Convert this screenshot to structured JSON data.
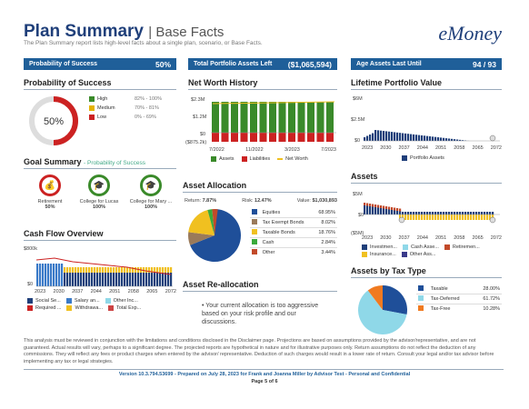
{
  "header": {
    "title": "Plan Summary",
    "subtitle": "| Base Facts",
    "description": "The Plan Summary report lists high-level facts about a single plan, scenario, or Base Facts.",
    "logo": "eMoney"
  },
  "kpis": [
    {
      "label": "Probability of Success",
      "value": "50%"
    },
    {
      "label": "Total Portfolio Assets Left",
      "value": "($1,065,594)"
    },
    {
      "label": "Age Assets Last Until",
      "value": "94 / 93"
    }
  ],
  "probability": {
    "title": "Probability of Success",
    "value": "50%",
    "fraction": 0.5,
    "legend": [
      {
        "label": "High",
        "range": "82% - 100%",
        "color": "#3a8a2a"
      },
      {
        "label": "Medium",
        "range": "70% - 81%",
        "color": "#e5b300"
      },
      {
        "label": "Low",
        "range": "0% - 69%",
        "color": "#c22"
      }
    ]
  },
  "goals": {
    "title": "Goal Summary",
    "subtitle": "- Probability of Success",
    "items": [
      {
        "label": "Retirement",
        "value": "50%"
      },
      {
        "label": "College for Lucas",
        "value": "100%"
      },
      {
        "label": "College for Mary ...",
        "value": "100%"
      }
    ]
  },
  "cashflow": {
    "title": "Cash Flow Overview",
    "ytop": "$800k",
    "ybottom": "$0",
    "xticks": [
      "2023",
      "2030",
      "2037",
      "2044",
      "2051",
      "2058",
      "2065",
      "2072"
    ],
    "legend": [
      "Social Se...",
      "Salary an...",
      "Other Inc...",
      "Required ...",
      "Withdrawa...",
      "Total Exp..."
    ]
  },
  "networth": {
    "title": "Net Worth History",
    "yticks": [
      "$2.3M",
      "$1.2M",
      "$0",
      "($875.2k)"
    ],
    "xticks": [
      "7/2022",
      "11/2022",
      "3/2023",
      "7/2023"
    ],
    "legend": [
      "Assets",
      "Liabilities",
      "Net Worth"
    ]
  },
  "allocation": {
    "title": "Asset Allocation",
    "return_label": "Return:",
    "return": "7.87%",
    "risk_label": "Risk:",
    "risk": "12.47%",
    "value_label": "Value:",
    "value": "$1,030,893",
    "items": [
      {
        "label": "Equities",
        "pct": "68.95%",
        "color": "#1f4f99"
      },
      {
        "label": "Tax Exempt Bonds",
        "pct": "8.02%",
        "color": "#9a7a5a"
      },
      {
        "label": "Taxable Bonds",
        "pct": "18.76%",
        "color": "#f0c020"
      },
      {
        "label": "Cash",
        "pct": "2.84%",
        "color": "#3aaa3a"
      },
      {
        "label": "Other",
        "pct": "3.44%",
        "color": "#c24a2a"
      }
    ]
  },
  "reallocation": {
    "title": "Asset Re-allocation",
    "message": "Your current allocation is too aggressive based on your risk profile and our discussions."
  },
  "lifetime": {
    "title": "Lifetime Portfolio Value",
    "yticks": [
      "$6M",
      "$2.5M",
      "$0"
    ],
    "xticks": [
      "2023",
      "2030",
      "2037",
      "2044",
      "2051",
      "2058",
      "2065",
      "2072"
    ],
    "legend": "Portfolio Assets"
  },
  "assets": {
    "title": "Assets",
    "yticks": [
      "$5M",
      "$0",
      "($5M)"
    ],
    "xticks": [
      "2023",
      "2030",
      "2037",
      "2044",
      "2051",
      "2058",
      "2065",
      "2072"
    ],
    "legend": [
      "Investmen...",
      "Cash Asse...",
      "Retiremen...",
      "Insurance...",
      "Other Ass..."
    ]
  },
  "taxtype": {
    "title": "Assets by Tax Type",
    "items": [
      {
        "label": "Taxable",
        "pct": "28.00%",
        "color": "#1f4f99"
      },
      {
        "label": "Tax-Deferred",
        "pct": "61.72%",
        "color": "#8fd8e8"
      },
      {
        "label": "Tax-Free",
        "pct": "10.28%",
        "color": "#f07a20"
      }
    ]
  },
  "footer": {
    "disclaimer": "This analysis must be reviewed in conjunction with the limitations and conditions disclosed in the Disclaimer page. Projections are based on assumptions provided by the advisor/representative, and are not guaranteed. Actual results will vary, perhaps to a significant degree. The projected reports are hypothetical in nature and for illustrative purposes only. Return assumptions do not reflect the deduction of any commissions. They will reflect any fees or product charges when entered by the advisor/ representative. Deduction of such charges would result in a lower rate of return. Consult your legal and/or tax advisor before implementing any tax or legal strategies.",
    "version": "Version 10.3.794.53699 - Prepared on July 28, 2023 for Frank and Joanna Miller by Advisor Test - Personal and Confidential",
    "page": "Page 5 of 6"
  }
}
